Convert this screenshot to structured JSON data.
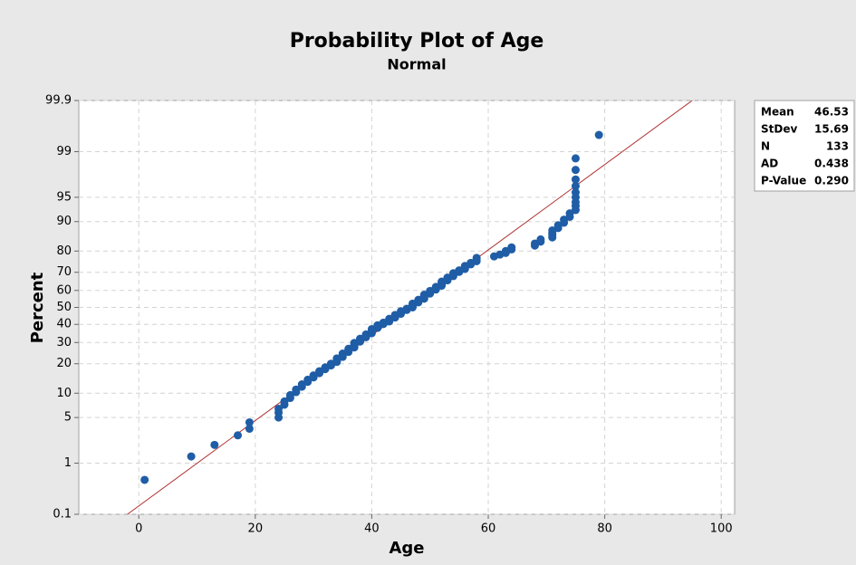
{
  "chart_data": {
    "type": "probability",
    "title": "Probability Plot of Age",
    "subtitle": "Normal",
    "x_label": "Age",
    "y_label": "Percent",
    "x": [
      1,
      9,
      13,
      17,
      19,
      19,
      24,
      24,
      24,
      25,
      25,
      26,
      26,
      27,
      27,
      28,
      28,
      29,
      29,
      30,
      30,
      31,
      31,
      32,
      32,
      33,
      33,
      34,
      34,
      34,
      35,
      35,
      35,
      36,
      36,
      36,
      37,
      37,
      37,
      37,
      38,
      38,
      38,
      39,
      39,
      39,
      40,
      40,
      40,
      40,
      41,
      41,
      41,
      42,
      42,
      43,
      43,
      43,
      44,
      44,
      44,
      45,
      45,
      45,
      46,
      46,
      47,
      47,
      47,
      47,
      48,
      48,
      48,
      49,
      49,
      49,
      49,
      50,
      50,
      50,
      51,
      51,
      51,
      52,
      52,
      52,
      52,
      53,
      53,
      53,
      54,
      54,
      54,
      55,
      55,
      56,
      56,
      56,
      57,
      57,
      58,
      58,
      58,
      61,
      62,
      63,
      63,
      64,
      64,
      68,
      68,
      69,
      69,
      71,
      71,
      71,
      71,
      72,
      72,
      73,
      73,
      74,
      74,
      75,
      75,
      75,
      75,
      75,
      75,
      75,
      75,
      75,
      79
    ],
    "values": [
      0.5,
      1.3,
      2.0,
      2.8,
      3.5,
      4.3,
      5.0,
      5.8,
      6.5,
      7.3,
      8.0,
      8.8,
      9.5,
      10.3,
      11.0,
      11.8,
      12.5,
      13.3,
      14.0,
      14.8,
      15.5,
      16.3,
      17.0,
      17.8,
      18.5,
      19.3,
      20.0,
      20.8,
      21.5,
      22.3,
      23.0,
      23.8,
      24.5,
      25.3,
      26.0,
      26.8,
      27.5,
      28.3,
      29.0,
      29.8,
      30.5,
      31.3,
      32.0,
      32.8,
      33.5,
      34.3,
      35.0,
      35.8,
      36.5,
      37.3,
      38.0,
      38.7,
      39.5,
      40.2,
      41.0,
      41.7,
      42.5,
      43.2,
      44.0,
      44.7,
      45.5,
      46.2,
      47.0,
      47.7,
      48.5,
      49.2,
      50.0,
      50.7,
      51.5,
      52.2,
      53.0,
      53.7,
      54.5,
      55.2,
      56.0,
      56.7,
      57.5,
      58.2,
      59.0,
      59.7,
      60.5,
      61.2,
      62.0,
      62.7,
      63.5,
      64.2,
      65.0,
      65.7,
      66.5,
      67.2,
      68.0,
      68.7,
      69.5,
      70.2,
      71.0,
      71.7,
      72.5,
      73.2,
      74.0,
      74.7,
      75.5,
      76.2,
      77.0,
      77.7,
      78.5,
      79.2,
      80.0,
      80.7,
      81.5,
      82.2,
      83.0,
      83.7,
      84.5,
      85.2,
      86.0,
      86.7,
      87.5,
      88.2,
      89.0,
      89.7,
      90.5,
      91.2,
      92.0,
      92.7,
      93.5,
      94.2,
      95.0,
      95.7,
      96.5,
      97.2,
      98.0,
      98.7,
      99.5
    ],
    "color": "#1f5da6",
    "line_color": "#b03030",
    "xlim": [
      -10.3,
      102.3
    ],
    "xticks": [
      0,
      20,
      40,
      60,
      80,
      100
    ],
    "ylim": [
      0.1,
      99.9
    ],
    "yticks": [
      0.1,
      1,
      5,
      10,
      20,
      30,
      40,
      50,
      60,
      70,
      80,
      90,
      95,
      99,
      99.9
    ],
    "y_scale": "probit",
    "grid": true,
    "stats": {
      "labels": [
        "Mean",
        "StDev",
        "N",
        "AD",
        "P-Value"
      ],
      "values": [
        46.53,
        15.69,
        133,
        0.438,
        0.29
      ],
      "value_labels": [
        "46.53",
        "15.69",
        "133",
        "0.438",
        "0.290"
      ]
    }
  }
}
